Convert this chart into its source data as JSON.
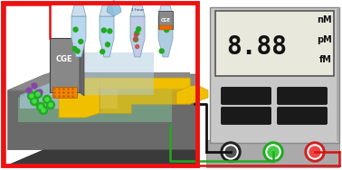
{
  "bg_color": "#ffffff",
  "red_border_color": "#ee1111",
  "meter_bg": "#c0c0c0",
  "meter_display_bg": "#f0f0e8",
  "meter_units": [
    "nM",
    "pM",
    "fM"
  ],
  "wire_black": "#111111",
  "wire_green": "#22aa22",
  "wire_red": "#dd1111",
  "gold_color": "#f0c000",
  "chip_top": "#888888",
  "chip_side": "#666666",
  "chip_bottom": "#555555",
  "oect_green": "#88bb88",
  "oect_blue": "#a8c8d8",
  "oect_gold": "#d8aa00",
  "cge_gray": "#808080",
  "cge_orange": "#ee8800",
  "vial_blue": "#b8d8ee",
  "vial_mixed": "#c8cce0",
  "dot_green": "#22aa22",
  "dot_purple": "#8844aa",
  "dot_red": "#cc3333"
}
